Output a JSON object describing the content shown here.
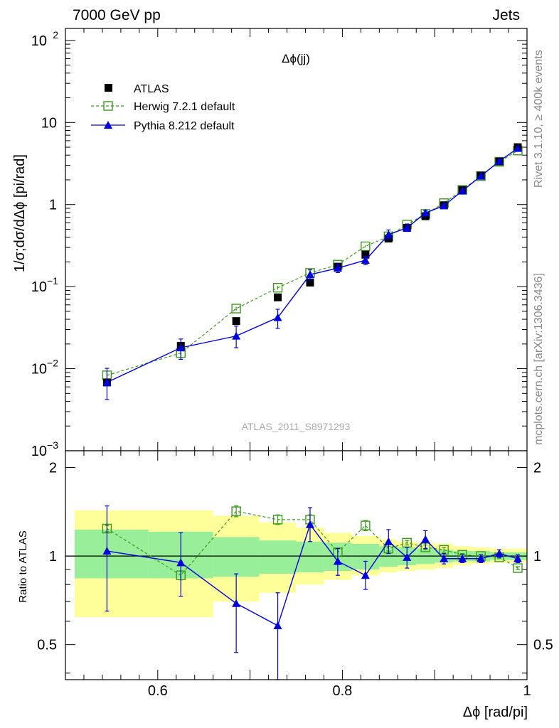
{
  "header": {
    "left": "7000 GeV pp",
    "right": "Jets"
  },
  "side_text": {
    "upper": "Rivet 3.1.10, ≥ 400k events",
    "lower": "mcplots.cern.ch [arXiv:1306.3436]"
  },
  "colors": {
    "atlas": "#000000",
    "herwig": "#3a9a1a",
    "pythia": "#0000dd",
    "band_inner": "#99ee99",
    "band_outer": "#ffff99"
  },
  "chart_data": [
    {
      "type": "scatter",
      "panel": "main",
      "title": "Δϕ(jj)",
      "ylabel": "1/σ;dσ/dΔϕ [pi/rad]",
      "watermark": "ATLAS_2011_S8971293",
      "xlim": [
        0.5,
        1.0
      ],
      "ylim": [
        0.001,
        140
      ],
      "yscale": "log",
      "yticks": [
        {
          "value": 100,
          "label": "10",
          "exp": "2"
        },
        {
          "value": 10,
          "label": "10",
          "exp": ""
        },
        {
          "value": 1,
          "label": "1",
          "exp": ""
        },
        {
          "value": 0.1,
          "label": "10",
          "exp": "−1"
        },
        {
          "value": 0.01,
          "label": "10",
          "exp": "−2"
        },
        {
          "value": 0.001,
          "label": "10",
          "exp": "−3"
        }
      ],
      "legend_position": "top-left",
      "series": [
        {
          "name": "ATLAS",
          "style": "data",
          "x": [
            0.545,
            0.625,
            0.685,
            0.73,
            0.765,
            0.795,
            0.825,
            0.85,
            0.87,
            0.89,
            0.91,
            0.93,
            0.95,
            0.97,
            0.99
          ],
          "y": [
            0.0068,
            0.019,
            0.038,
            0.074,
            0.112,
            0.175,
            0.245,
            0.385,
            0.52,
            0.72,
            0.98,
            1.5,
            2.25,
            3.35,
            5.0
          ]
        },
        {
          "name": "Herwig 7.2.1 default",
          "style": "dashed-open-square",
          "x": [
            0.545,
            0.625,
            0.685,
            0.73,
            0.765,
            0.795,
            0.825,
            0.85,
            0.87,
            0.89,
            0.91,
            0.93,
            0.95,
            0.97,
            0.99
          ],
          "y": [
            0.0083,
            0.0155,
            0.054,
            0.097,
            0.147,
            0.185,
            0.31,
            0.41,
            0.57,
            0.77,
            1.04,
            1.51,
            2.22,
            3.32,
            4.55
          ],
          "yerr": [
            0.0008,
            0.0015,
            0.003,
            0.005,
            0.006,
            0.007,
            0.01,
            0.01,
            0.01,
            0.01,
            0.01,
            0.01,
            0.01,
            0.01,
            0.01
          ]
        },
        {
          "name": "Pythia 8.212 default",
          "style": "solid-triangle",
          "x": [
            0.545,
            0.625,
            0.685,
            0.73,
            0.765,
            0.795,
            0.825,
            0.85,
            0.87,
            0.89,
            0.91,
            0.93,
            0.95,
            0.97,
            0.99
          ],
          "y": [
            0.0068,
            0.018,
            0.025,
            0.042,
            0.14,
            0.168,
            0.21,
            0.43,
            0.52,
            0.79,
            0.97,
            1.47,
            2.22,
            3.38,
            4.85
          ],
          "yerr_low": [
            0.0026,
            0.005,
            0.007,
            0.011,
            0.02,
            0.02,
            0.025,
            0.05,
            0.05,
            0.05,
            0.03,
            0.03,
            0.05,
            0.06,
            0.08
          ],
          "yerr_high": [
            0.0033,
            0.005,
            0.008,
            0.011,
            0.02,
            0.02,
            0.025,
            0.06,
            0.06,
            0.05,
            0.03,
            0.03,
            0.05,
            0.06,
            0.08
          ]
        }
      ]
    },
    {
      "type": "line",
      "panel": "ratio",
      "xlabel": "Δϕ [rad/pi]",
      "ylabel": "Ratio to ATLAS",
      "xlim": [
        0.5,
        1.0
      ],
      "ylim": [
        0.38,
        2.28
      ],
      "yscale": "log",
      "xticks": [
        {
          "value": 0.6,
          "label": "0.6"
        },
        {
          "value": 0.8,
          "label": "0.8"
        },
        {
          "value": 1.0,
          "label": "1"
        }
      ],
      "yticks": [
        {
          "value": 2,
          "label": "2"
        },
        {
          "value": 1,
          "label": "1"
        },
        {
          "value": 0.5,
          "label": "0.5"
        }
      ],
      "reference_line": 1,
      "bands": {
        "x_edges": [
          0.51,
          0.59,
          0.66,
          0.71,
          0.75,
          0.78,
          0.81,
          0.84,
          0.86,
          0.88,
          0.9,
          0.92,
          0.94,
          0.96,
          0.98,
          1.0
        ],
        "inner_low": [
          0.84,
          0.84,
          0.85,
          0.87,
          0.88,
          0.89,
          0.9,
          0.92,
          0.93,
          0.94,
          0.95,
          0.96,
          0.96,
          0.97,
          0.97
        ],
        "inner_high": [
          1.23,
          1.21,
          1.16,
          1.13,
          1.12,
          1.11,
          1.1,
          1.08,
          1.07,
          1.06,
          1.05,
          1.04,
          1.04,
          1.03,
          1.03
        ],
        "outer_low": [
          0.62,
          0.62,
          0.7,
          0.75,
          0.8,
          0.83,
          0.86,
          0.88,
          0.89,
          0.9,
          0.91,
          0.93,
          0.94,
          0.95,
          0.95
        ],
        "outer_high": [
          1.43,
          1.43,
          1.37,
          1.3,
          1.25,
          1.2,
          1.17,
          1.14,
          1.12,
          1.11,
          1.1,
          1.08,
          1.07,
          1.06,
          1.06
        ]
      },
      "series": [
        {
          "name": "Herwig 7.2.1 default",
          "x": [
            0.545,
            0.625,
            0.685,
            0.73,
            0.765,
            0.795,
            0.825,
            0.85,
            0.87,
            0.89,
            0.91,
            0.93,
            0.95,
            0.97,
            0.99
          ],
          "y": [
            1.24,
            0.86,
            1.42,
            1.33,
            1.33,
            1.03,
            1.27,
            1.06,
            1.11,
            1.07,
            1.05,
            1.01,
            1.0,
            0.99,
            0.91
          ],
          "yerr": [
            0.03,
            0.03,
            0.06,
            0.05,
            0.05,
            0.03,
            0.05,
            0.02,
            0.02,
            0.02,
            0.02,
            0.01,
            0.01,
            0.01,
            0.01
          ]
        },
        {
          "name": "Pythia 8.212 default",
          "x": [
            0.545,
            0.625,
            0.685,
            0.73,
            0.765,
            0.795,
            0.825,
            0.85,
            0.87,
            0.89,
            0.91,
            0.93,
            0.95,
            0.97,
            0.99
          ],
          "y": [
            1.04,
            0.95,
            0.69,
            0.58,
            1.28,
            0.96,
            0.86,
            1.12,
            0.99,
            1.14,
            0.98,
            0.98,
            0.98,
            1.02,
            0.98
          ],
          "yerr_low": [
            0.39,
            0.22,
            0.22,
            0.2,
            0.16,
            0.1,
            0.09,
            0.1,
            0.08,
            0.08,
            0.04,
            0.03,
            0.03,
            0.03,
            0.03
          ],
          "yerr_high": [
            0.44,
            0.25,
            0.18,
            0.17,
            0.18,
            0.1,
            0.1,
            0.11,
            0.08,
            0.08,
            0.04,
            0.03,
            0.03,
            0.03,
            0.03
          ]
        }
      ]
    }
  ]
}
